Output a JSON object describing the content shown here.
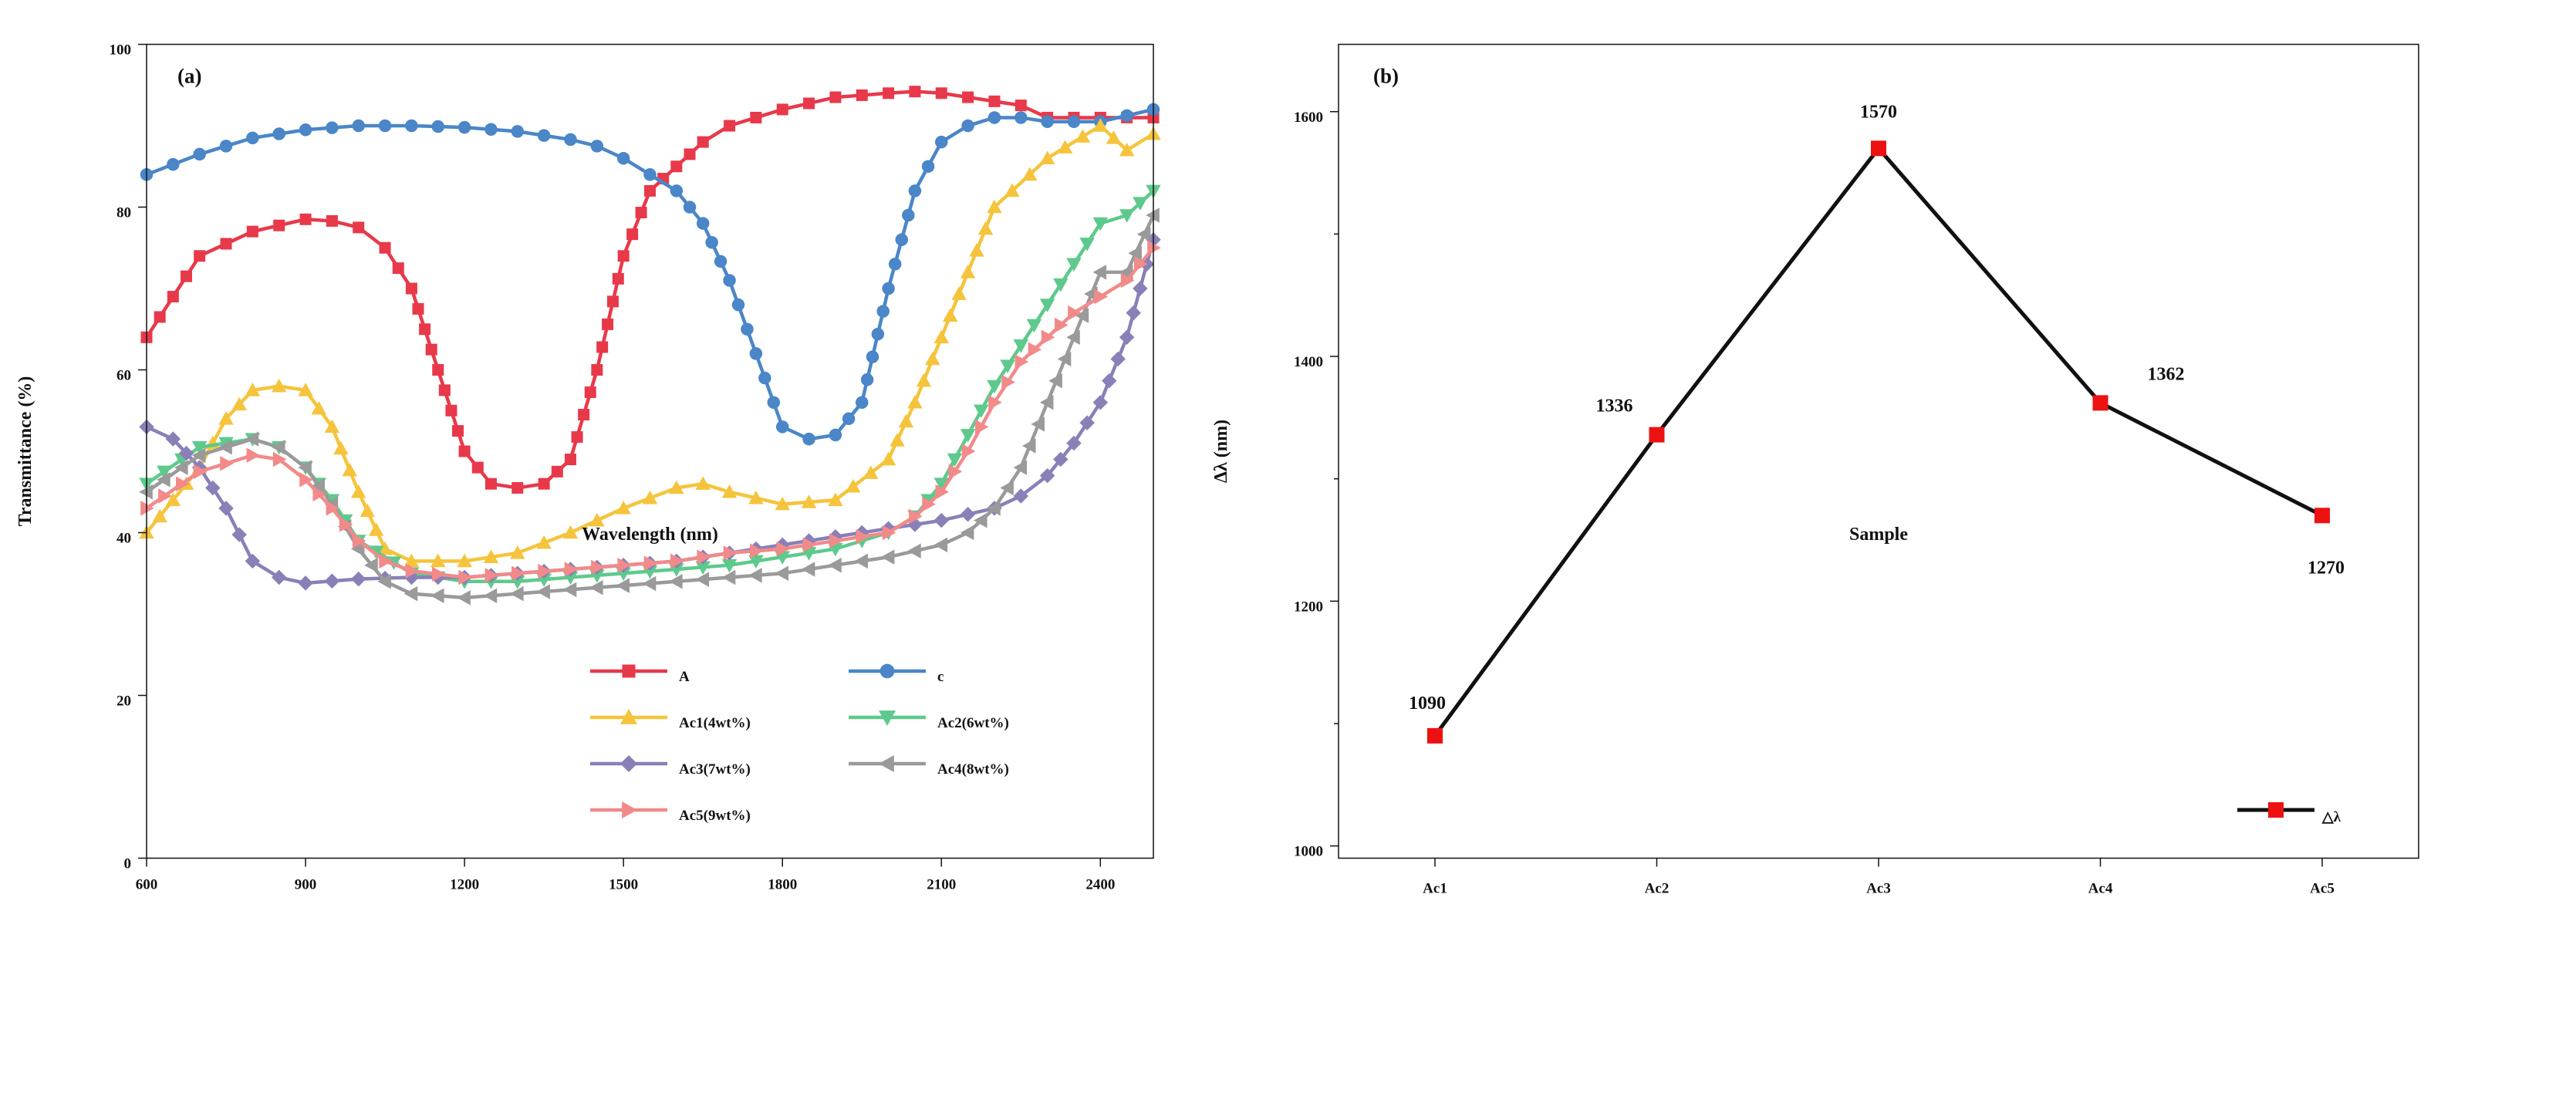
{
  "chart_data": [
    {
      "panel": "(a)",
      "type": "line",
      "xlabel": "Wavelength (nm)",
      "ylabel": "Transmittance (%)",
      "xlim": [
        600,
        2500
      ],
      "ylim": [
        0,
        100
      ],
      "xticks": [
        600,
        900,
        1200,
        1500,
        1800,
        2100,
        2400
      ],
      "yticks": [
        0,
        20,
        40,
        60,
        80,
        100
      ],
      "legend_position": "bottom-center",
      "series": [
        {
          "name": "A",
          "color": "#e8394a",
          "marker": "square",
          "x": [
            600,
            700,
            800,
            900,
            950,
            1000,
            1050,
            1100,
            1150,
            1200,
            1250,
            1300,
            1350,
            1400,
            1450,
            1500,
            1550,
            1600,
            1650,
            1700,
            1800,
            1900,
            2000,
            2050,
            2100,
            2150,
            2200,
            2250,
            2300,
            2400,
            2500
          ],
          "y": [
            64,
            74,
            77,
            78.5,
            78.3,
            77.5,
            75,
            70,
            60,
            50,
            46,
            45.5,
            46,
            49,
            60,
            74,
            82,
            85,
            88,
            90,
            92,
            93.5,
            94,
            94.2,
            94,
            93.5,
            93,
            92.5,
            91,
            91,
            91
          ]
        },
        {
          "name": "c",
          "color": "#4a86c8",
          "marker": "circle",
          "x": [
            600,
            700,
            800,
            900,
            1000,
            1100,
            1200,
            1300,
            1400,
            1450,
            1500,
            1550,
            1600,
            1650,
            1700,
            1750,
            1800,
            1850,
            1900,
            1950,
            2000,
            2050,
            2100,
            2150,
            2200,
            2250,
            2300,
            2400,
            2500
          ],
          "y": [
            84,
            86.5,
            88.5,
            89.5,
            90,
            90,
            89.8,
            89.3,
            88.3,
            87.5,
            86,
            84,
            82,
            78,
            71,
            62,
            53,
            51.5,
            52,
            56,
            70,
            82,
            88,
            90,
            91,
            91,
            90.5,
            90.5,
            92
          ]
        },
        {
          "name": "Ac1(4wt%)",
          "color": "#f5c43c",
          "marker": "triangle-up",
          "x": [
            600,
            700,
            750,
            800,
            850,
            900,
            950,
            1000,
            1050,
            1100,
            1200,
            1300,
            1400,
            1500,
            1600,
            1650,
            1700,
            1800,
            1900,
            2000,
            2050,
            2100,
            2150,
            2200,
            2300,
            2400,
            2450,
            2500
          ],
          "y": [
            40,
            48,
            54,
            57.5,
            58,
            57.5,
            53,
            45,
            38,
            36.5,
            36.5,
            37.5,
            40,
            43,
            45.5,
            46,
            45,
            43.5,
            44,
            49,
            56,
            64,
            72,
            80,
            86,
            90,
            87,
            89
          ]
        },
        {
          "name": "Ac2(6wt%)",
          "color": "#5ec98c",
          "marker": "triangle-down",
          "x": [
            600,
            700,
            800,
            850,
            900,
            950,
            1000,
            1100,
            1200,
            1300,
            1400,
            1500,
            1600,
            1700,
            1800,
            1900,
            2000,
            2050,
            2100,
            2150,
            2200,
            2250,
            2300,
            2350,
            2400,
            2450,
            2500
          ],
          "y": [
            46,
            50.5,
            51.5,
            50.5,
            48,
            44,
            39,
            35,
            34,
            34,
            34.5,
            35,
            35.5,
            36,
            37,
            38,
            40,
            42,
            46,
            52,
            58,
            63,
            68,
            73,
            78,
            79,
            82
          ]
        },
        {
          "name": "Ac3(7wt%)",
          "color": "#8a80b8",
          "marker": "diamond",
          "x": [
            600,
            650,
            700,
            750,
            800,
            850,
            900,
            1000,
            1100,
            1200,
            1300,
            1400,
            1500,
            1600,
            1700,
            1800,
            1900,
            2000,
            2100,
            2200,
            2250,
            2300,
            2350,
            2400,
            2450,
            2500
          ],
          "y": [
            53,
            51.5,
            48,
            43,
            36.5,
            34.5,
            33.8,
            34.3,
            34.5,
            34.5,
            35,
            35.5,
            36,
            36.5,
            37.5,
            38.5,
            39.5,
            40.5,
            41.5,
            43,
            44.5,
            47,
            51,
            56,
            64,
            76
          ]
        },
        {
          "name": "Ac4(8wt%)",
          "color": "#9a9a9a",
          "marker": "triangle-left",
          "x": [
            600,
            700,
            800,
            850,
            900,
            950,
            1000,
            1050,
            1100,
            1200,
            1300,
            1400,
            1500,
            1600,
            1700,
            1800,
            1900,
            2000,
            2100,
            2150,
            2200,
            2250,
            2300,
            2350,
            2400,
            2450,
            2500
          ],
          "y": [
            45,
            49.5,
            51.5,
            50.5,
            48,
            43.5,
            38,
            34,
            32.5,
            32,
            32.5,
            33,
            33.5,
            34,
            34.5,
            35,
            36,
            37,
            38.5,
            40,
            43,
            48,
            56,
            64,
            72,
            72,
            79
          ]
        },
        {
          "name": "Ac5(9wt%)",
          "color": "#f28a8a",
          "marker": "triangle-right",
          "x": [
            600,
            700,
            800,
            850,
            900,
            950,
            1000,
            1050,
            1100,
            1200,
            1300,
            1400,
            1500,
            1600,
            1700,
            1800,
            1900,
            2000,
            2050,
            2100,
            2150,
            2200,
            2250,
            2300,
            2350,
            2400,
            2450,
            2500
          ],
          "y": [
            43,
            47.5,
            49.5,
            49,
            46.5,
            43,
            39,
            36.5,
            35.3,
            34.5,
            35,
            35.5,
            36,
            36.5,
            37.5,
            38,
            39,
            40,
            42,
            45,
            50,
            56,
            61,
            64,
            67,
            69,
            71,
            75
          ]
        }
      ]
    },
    {
      "panel": "(b)",
      "type": "line",
      "xlabel": "Sample",
      "ylabel": "Δλ (nm)",
      "categories": [
        "Ac1",
        "Ac2",
        "Ac3",
        "Ac4",
        "Ac5"
      ],
      "ylim": [
        990,
        1655
      ],
      "yticks": [
        1000,
        1200,
        1400,
        1600
      ],
      "legend_position": "bottom-right",
      "series": [
        {
          "name": "△λ",
          "color": "#111111",
          "marker_color": "#ee1111",
          "marker": "square",
          "values": [
            1090,
            1336,
            1570,
            1362,
            1270
          ],
          "labels": [
            "1090",
            "1336",
            "1570",
            "1362",
            "1270"
          ]
        }
      ]
    }
  ]
}
